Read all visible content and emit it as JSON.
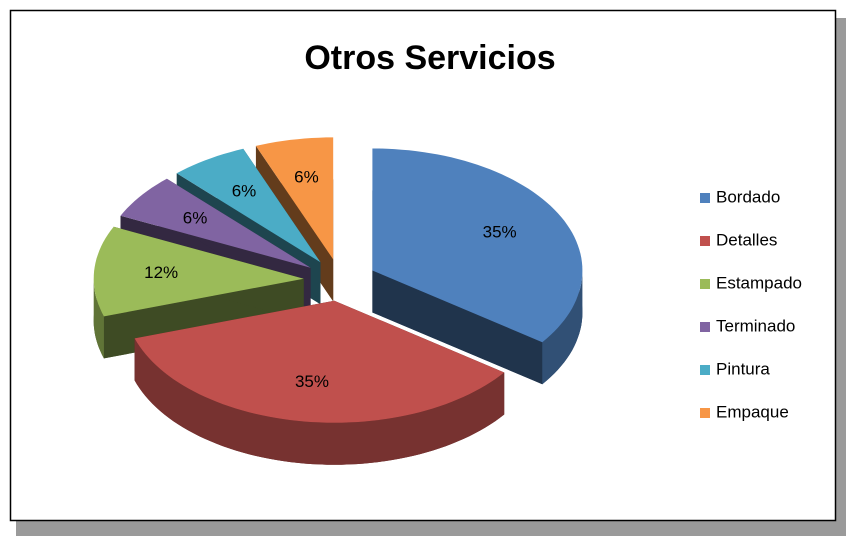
{
  "chart_data": {
    "type": "pie",
    "title": "Otros Servicios",
    "categories": [
      "Bordado",
      "Detalles",
      "Estampado",
      "Terminado",
      "Pintura",
      "Empaque"
    ],
    "values": [
      35,
      35,
      12,
      6,
      6,
      6
    ],
    "value_labels": [
      "35%",
      "35%",
      "12%",
      "6%",
      "6%",
      "6%"
    ],
    "colors": [
      "#4f81bd",
      "#c0504d",
      "#9bbb59",
      "#8064a2",
      "#4bacc6",
      "#f79646"
    ],
    "legend": "right"
  }
}
